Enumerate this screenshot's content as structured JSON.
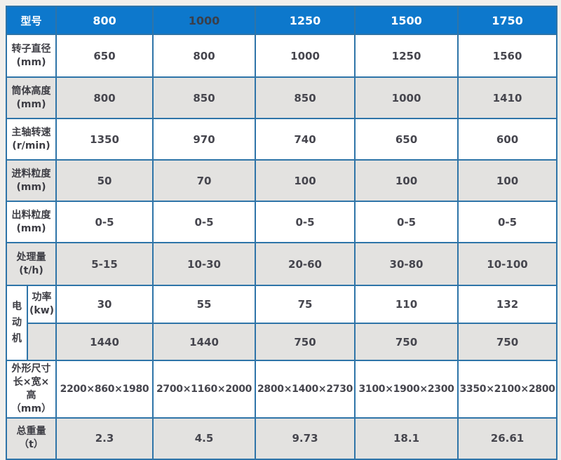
{
  "table": {
    "header": {
      "label": "型号",
      "models": [
        "800",
        "1000",
        "1250",
        "1500",
        "1750"
      ]
    },
    "rows": [
      {
        "label": "转子直径",
        "unit": "(mm)",
        "values": [
          "650",
          "800",
          "1000",
          "1250",
          "1560"
        ]
      },
      {
        "label": "筒体高度",
        "unit": "(mm)",
        "values": [
          "800",
          "850",
          "850",
          "1000",
          "1410"
        ]
      },
      {
        "label": "主轴转速",
        "unit": "(r/min)",
        "values": [
          "1350",
          "970",
          "740",
          "650",
          "600"
        ]
      },
      {
        "label": "进料粒度",
        "unit": "(mm)",
        "values": [
          "50",
          "70",
          "100",
          "100",
          "100"
        ]
      },
      {
        "label": "出料粒度",
        "unit": "(mm)",
        "values": [
          "0-5",
          "0-5",
          "0-5",
          "0-5",
          "0-5"
        ]
      },
      {
        "label": "处理量",
        "unit": "(t/h)",
        "values": [
          "5-15",
          "10-30",
          "20-60",
          "30-80",
          "10-100"
        ]
      }
    ],
    "motor": {
      "group_label": "电动机",
      "power_label": "功率",
      "power_unit": "(kw)",
      "power_values": [
        "30",
        "55",
        "75",
        "110",
        "132"
      ],
      "speed_values": [
        "1440",
        "1440",
        "750",
        "750",
        "750"
      ]
    },
    "dimensions": {
      "label_line1": "外形尺寸",
      "label_line2": "长×宽×高",
      "label_line3": "（mm）",
      "values": [
        "2200×860×1980",
        "2700×1160×2000",
        "2800×1400×2730",
        "3100×1900×2300",
        "3350×2100×2800"
      ]
    },
    "weight": {
      "label": "总重量",
      "unit": "（t）",
      "values": [
        "2.3",
        "4.5",
        "9.73",
        "18.1",
        "26.61"
      ]
    }
  },
  "colors": {
    "header_bg": "#0d78cc",
    "header_text": "#ffffff",
    "header_text_dark": "#3a3f4a",
    "border": "#2e74a8",
    "row_alt_bg": "#e3e2e0",
    "row_bg": "#ffffff",
    "cell_text": "#46464e",
    "page_bg": "#f1efec"
  }
}
